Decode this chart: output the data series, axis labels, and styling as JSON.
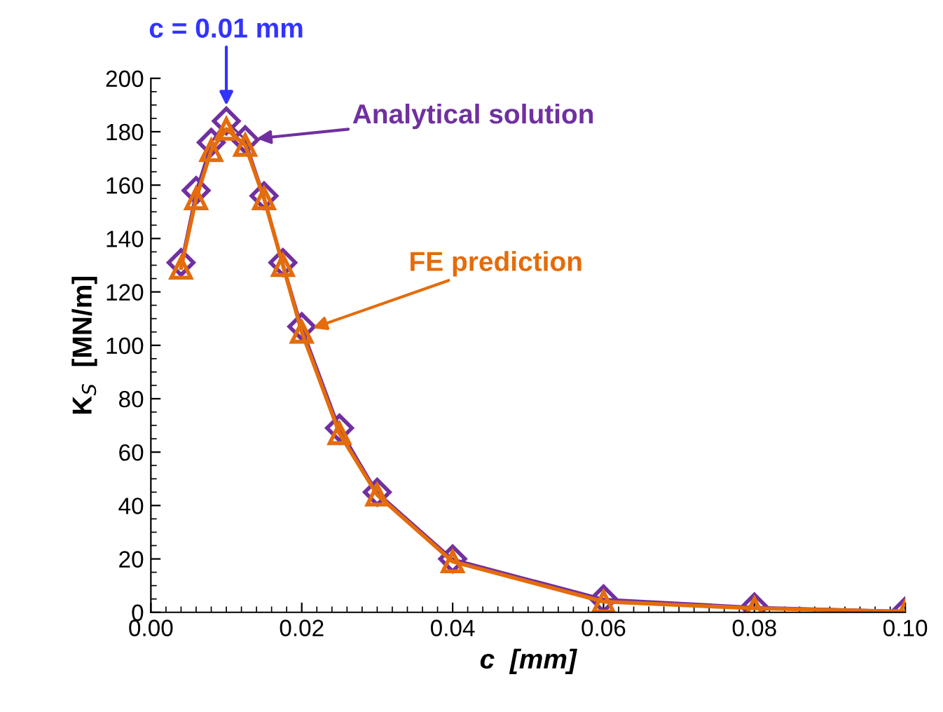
{
  "chart_data": {
    "type": "line",
    "xlabel": "c  [mm]",
    "ylabel": "K$_{S}$  [MN/m]",
    "x": [
      0.004,
      0.006,
      0.008,
      0.01,
      0.0125,
      0.015,
      0.0175,
      0.02,
      0.025,
      0.03,
      0.04,
      0.06,
      0.08,
      0.1
    ],
    "series": [
      {
        "name": "Analytical solution",
        "color": "#7030a0",
        "marker": "diamond",
        "values": [
          131,
          158,
          176,
          184,
          177,
          156,
          131,
          107,
          69,
          45,
          20,
          5,
          2,
          0.5
        ]
      },
      {
        "name": "FE prediction",
        "color": "#e46c0a",
        "marker": "triangle",
        "values": [
          129,
          155,
          173,
          181,
          175,
          155,
          130,
          105,
          67,
          44,
          19,
          4,
          1.5,
          0.3
        ]
      }
    ],
    "annotations": [
      "c = 0.01 mm"
    ],
    "xlim": [
      0.0,
      0.1
    ],
    "xticks": [
      {
        "value": 0.0,
        "label": "0.00"
      },
      {
        "value": 0.02,
        "label": "0.02"
      },
      {
        "value": 0.04,
        "label": "0.04"
      },
      {
        "value": 0.06,
        "label": "0.06"
      },
      {
        "value": 0.08,
        "label": "0.08"
      },
      {
        "value": 0.1,
        "label": "0.10"
      }
    ],
    "ylim": [
      0,
      200
    ],
    "yticks": [
      0,
      20,
      40,
      60,
      80,
      100,
      120,
      140,
      160,
      180,
      200
    ],
    "grid": false
  }
}
